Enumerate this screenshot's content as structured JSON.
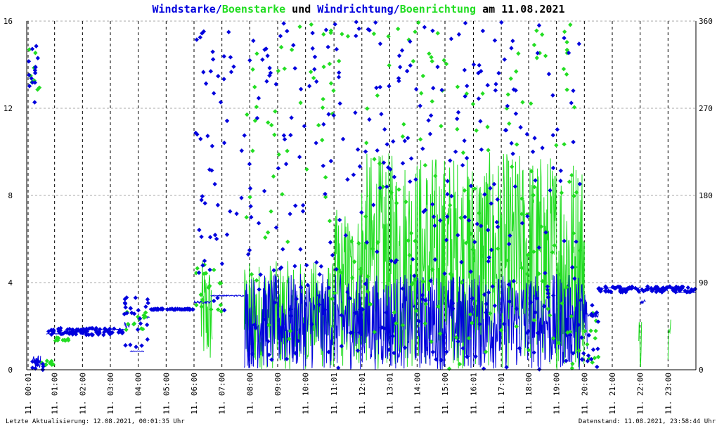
{
  "title_parts": {
    "windstaerke": "Windstarke",
    "slash1": "/",
    "boenstaerke": "Boenstarke",
    "und": " und ",
    "windrichtung": "Windrichtung",
    "slash2": "/",
    "boenrichtung": "Boenrichtung",
    "am": " am 11.08.2021"
  },
  "colors": {
    "wind": "#0000dd",
    "boen": "#22dd22",
    "grid_h": "#aaaaaa",
    "grid_v": "#000000",
    "axis": "#000000"
  },
  "footer": {
    "left": "Letzte Aktualisierung: 12.08.2021, 00:01:35 Uhr",
    "right": "Datenstand: 11.08.2021, 23:58:44 Uhr"
  },
  "chart_data": {
    "type": "line",
    "title": "Windstarke/Boenstarke und Windrichtung/Boenrichtung am 11.08.2021",
    "y_left": {
      "ylim": [
        0,
        16
      ],
      "ticks": [
        "0",
        "4",
        "8",
        "12",
        "16"
      ]
    },
    "y_right": {
      "ylim": [
        0,
        360
      ],
      "ticks": [
        "0",
        "90",
        "180",
        "270",
        "360"
      ]
    },
    "x_range_hours": [
      0,
      24
    ],
    "x_ticks": [
      {
        "h": 0.05,
        "label": "11. 00:01"
      },
      {
        "h": 1.0,
        "label": "11. 01:00"
      },
      {
        "h": 2.0,
        "label": "11. 02:00"
      },
      {
        "h": 3.0,
        "label": "11. 03:00"
      },
      {
        "h": 4.0,
        "label": "11. 04:00"
      },
      {
        "h": 5.0,
        "label": "11. 05:00"
      },
      {
        "h": 6.0,
        "label": "11. 06:00"
      },
      {
        "h": 7.0,
        "label": "11. 07:00"
      },
      {
        "h": 8.0,
        "label": "11. 08:00"
      },
      {
        "h": 9.0,
        "label": "11. 09:00"
      },
      {
        "h": 10.0,
        "label": "11. 10:00"
      },
      {
        "h": 11.02,
        "label": "11. 11:01"
      },
      {
        "h": 12.02,
        "label": "11. 12:01"
      },
      {
        "h": 13.02,
        "label": "11. 13:01"
      },
      {
        "h": 14.0,
        "label": "11. 14:00"
      },
      {
        "h": 15.0,
        "label": "11. 15:00"
      },
      {
        "h": 16.02,
        "label": "11. 16:01"
      },
      {
        "h": 17.02,
        "label": "11. 17:01"
      },
      {
        "h": 18.0,
        "label": "11. 18:00"
      },
      {
        "h": 19.0,
        "label": "11. 19:00"
      },
      {
        "h": 20.0,
        "label": "11. 20:00"
      },
      {
        "h": 21.0,
        "label": "11. 21:00"
      },
      {
        "h": 22.0,
        "label": "11. 22:00"
      },
      {
        "h": 23.0,
        "label": "11. 23:00"
      }
    ],
    "series": [
      {
        "name": "Windstarke",
        "kind": "line",
        "axis": "left",
        "segments": [
          {
            "from": 0.0,
            "to": 0.2,
            "base": 0.0,
            "amp": 0.0
          },
          {
            "from": 0.2,
            "to": 0.5,
            "base": 0.4,
            "amp": 0.3
          },
          {
            "from": 0.7,
            "to": 1.5,
            "base": 1.65,
            "amp": 0.02
          },
          {
            "from": 1.5,
            "to": 2.1,
            "base": 1.75,
            "amp": 0.03
          },
          {
            "from": 2.1,
            "to": 3.5,
            "base": 1.85,
            "amp": 0.02
          },
          {
            "from": 3.5,
            "to": 3.7,
            "base": 2.0,
            "amp": 0.2
          },
          {
            "from": 3.7,
            "to": 4.2,
            "base": 0.85,
            "amp": 0.02
          },
          {
            "from": 4.2,
            "to": 4.4,
            "base": 2.4,
            "amp": 0.05
          },
          {
            "from": 4.4,
            "to": 6.0,
            "base": 2.8,
            "amp": 0.02
          },
          {
            "from": 6.0,
            "to": 6.6,
            "base": 3.1,
            "amp": 0.05
          },
          {
            "from": 6.6,
            "to": 7.8,
            "base": 3.4,
            "amp": 0.03
          },
          {
            "from": 7.8,
            "to": 20.1,
            "base": 2.2,
            "amp": 2.2
          },
          {
            "from": 20.1,
            "to": 20.5,
            "base": 2.5,
            "amp": 0.1
          },
          {
            "from": 20.5,
            "to": 22.0,
            "base": 3.75,
            "amp": 0.02
          },
          {
            "from": 22.0,
            "to": 22.2,
            "base": 3.1,
            "amp": 0.1
          },
          {
            "from": 22.2,
            "to": 23.0,
            "base": 3.65,
            "amp": 0.02
          },
          {
            "from": 23.0,
            "to": 23.3,
            "base": 3.75,
            "amp": 0.03
          },
          {
            "from": 23.3,
            "to": 24.0,
            "base": 3.55,
            "amp": 0.01
          }
        ]
      },
      {
        "name": "Boenstarke",
        "kind": "line",
        "axis": "left",
        "segments": [
          {
            "from": 6.25,
            "to": 6.65,
            "base": 2.5,
            "amp": 2.5
          },
          {
            "from": 7.8,
            "to": 11.0,
            "base": 2.5,
            "amp": 2.5
          },
          {
            "from": 11.0,
            "to": 12.0,
            "base": 3.7,
            "amp": 3.7
          },
          {
            "from": 12.0,
            "to": 20.0,
            "base": 5.0,
            "amp": 5.0
          },
          {
            "from": 21.95,
            "to": 22.05,
            "base": 1.3,
            "amp": 1.3
          },
          {
            "from": 23.0,
            "to": 23.1,
            "base": 1.3,
            "amp": 1.3
          }
        ]
      },
      {
        "name": "Windrichtung",
        "kind": "scatter",
        "axis": "right",
        "clusters": [
          {
            "from": 0.0,
            "to": 0.5,
            "deg_min": 255,
            "deg_max": 340
          },
          {
            "from": 0.2,
            "to": 0.6,
            "deg_min": 0,
            "deg_max": 20
          },
          {
            "from": 0.7,
            "to": 3.5,
            "deg_min": 36,
            "deg_max": 43
          },
          {
            "from": 3.5,
            "to": 4.4,
            "deg_min": 18,
            "deg_max": 78
          },
          {
            "from": 4.4,
            "to": 6.0,
            "deg_min": 62,
            "deg_max": 63
          },
          {
            "from": 6.0,
            "to": 7.8,
            "deg_min": 60,
            "deg_max": 360
          },
          {
            "from": 7.8,
            "to": 10.5,
            "deg_min": 0,
            "deg_max": 360
          },
          {
            "from": 10.5,
            "to": 13.0,
            "deg_min": 0,
            "deg_max": 360
          },
          {
            "from": 13.0,
            "to": 16.0,
            "deg_min": 0,
            "deg_max": 360
          },
          {
            "from": 16.0,
            "to": 19.9,
            "deg_min": 0,
            "deg_max": 360
          },
          {
            "from": 19.9,
            "to": 20.5,
            "deg_min": 0,
            "deg_max": 70
          },
          {
            "from": 20.5,
            "to": 24.0,
            "deg_min": 80,
            "deg_max": 86
          }
        ]
      },
      {
        "name": "Boenrichtung",
        "kind": "scatter",
        "axis": "right",
        "clusters": [
          {
            "from": 0.0,
            "to": 0.5,
            "deg_min": 270,
            "deg_max": 335
          },
          {
            "from": 0.5,
            "to": 1.0,
            "deg_min": 5,
            "deg_max": 10
          },
          {
            "from": 1.0,
            "to": 1.5,
            "deg_min": 30,
            "deg_max": 34
          },
          {
            "from": 3.5,
            "to": 4.3,
            "deg_min": 40,
            "deg_max": 60
          },
          {
            "from": 6.0,
            "to": 7.0,
            "deg_min": 60,
            "deg_max": 110
          },
          {
            "from": 7.8,
            "to": 19.9,
            "deg_min": 0,
            "deg_max": 360
          },
          {
            "from": 19.9,
            "to": 20.5,
            "deg_min": 5,
            "deg_max": 60
          }
        ]
      }
    ]
  }
}
